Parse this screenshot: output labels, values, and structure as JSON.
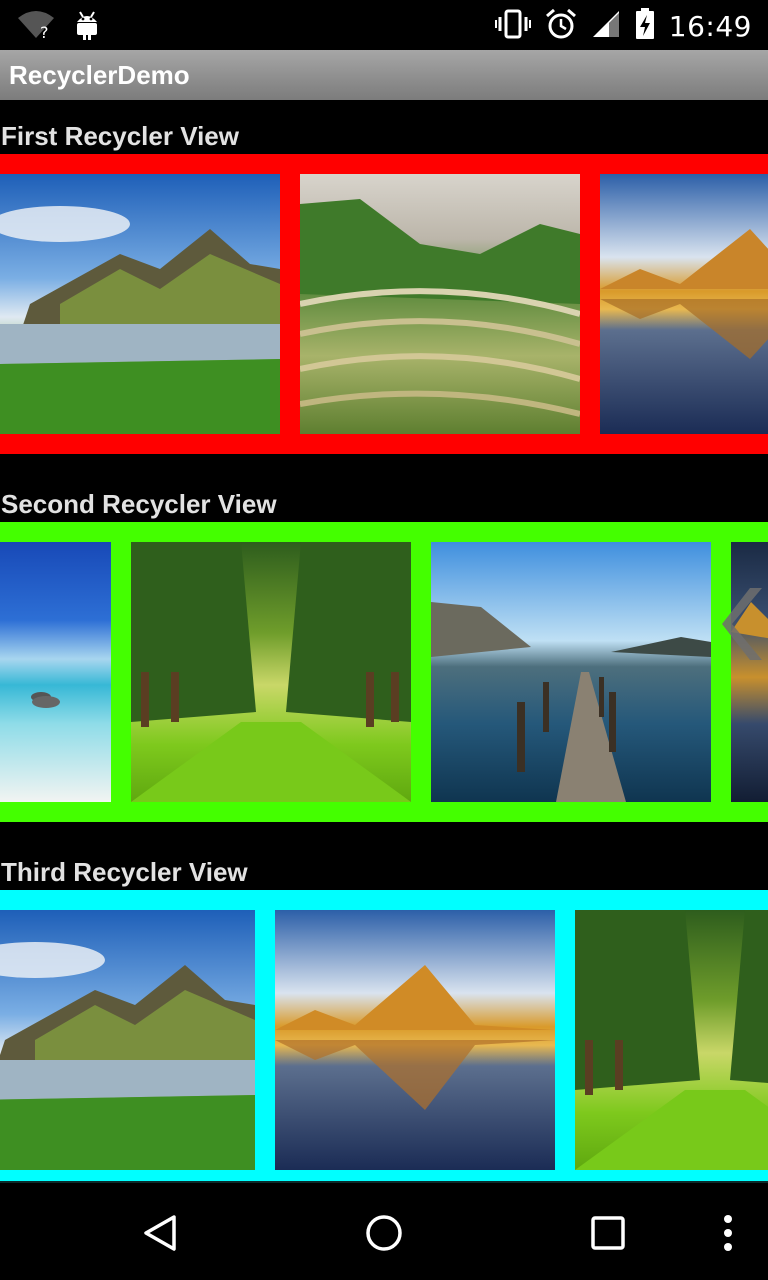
{
  "status_bar": {
    "time": "16:49",
    "icons": [
      "wifi-question-icon",
      "android-icon",
      "vibrate-icon",
      "alarm-icon",
      "signal-icon",
      "battery-icon"
    ]
  },
  "app": {
    "title": "RecyclerDemo"
  },
  "sections": [
    {
      "title": "First Recycler View",
      "border_color": "#ff0000"
    },
    {
      "title": "Second Recycler View",
      "border_color": "#44ff00"
    },
    {
      "title": "Third Recycler View",
      "border_color": "#00ffff"
    }
  ],
  "nav_bar": {
    "icons": [
      "back-icon",
      "home-icon",
      "recents-icon",
      "overflow-menu-icon"
    ]
  }
}
